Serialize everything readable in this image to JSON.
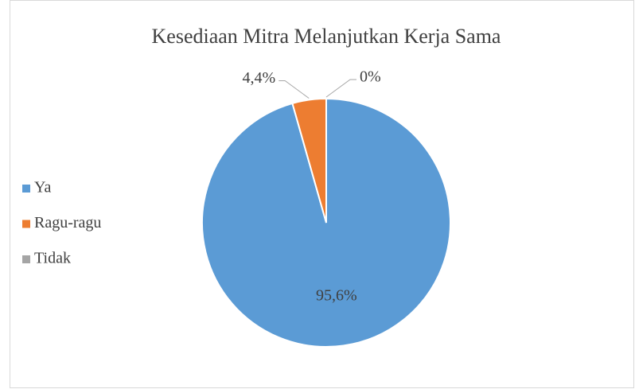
{
  "chart_data": {
    "type": "pie",
    "title": "Kesediaan Mitra Melanjutkan Kerja Sama",
    "categories": [
      "Ya",
      "Ragu-ragu",
      "Tidak"
    ],
    "values": [
      95.6,
      4.4,
      0
    ],
    "value_labels": [
      "95,6%",
      "4,4%",
      "0%"
    ],
    "colors": [
      "#5b9bd5",
      "#ed7d31",
      "#a5a5a5"
    ],
    "legend": "left"
  }
}
